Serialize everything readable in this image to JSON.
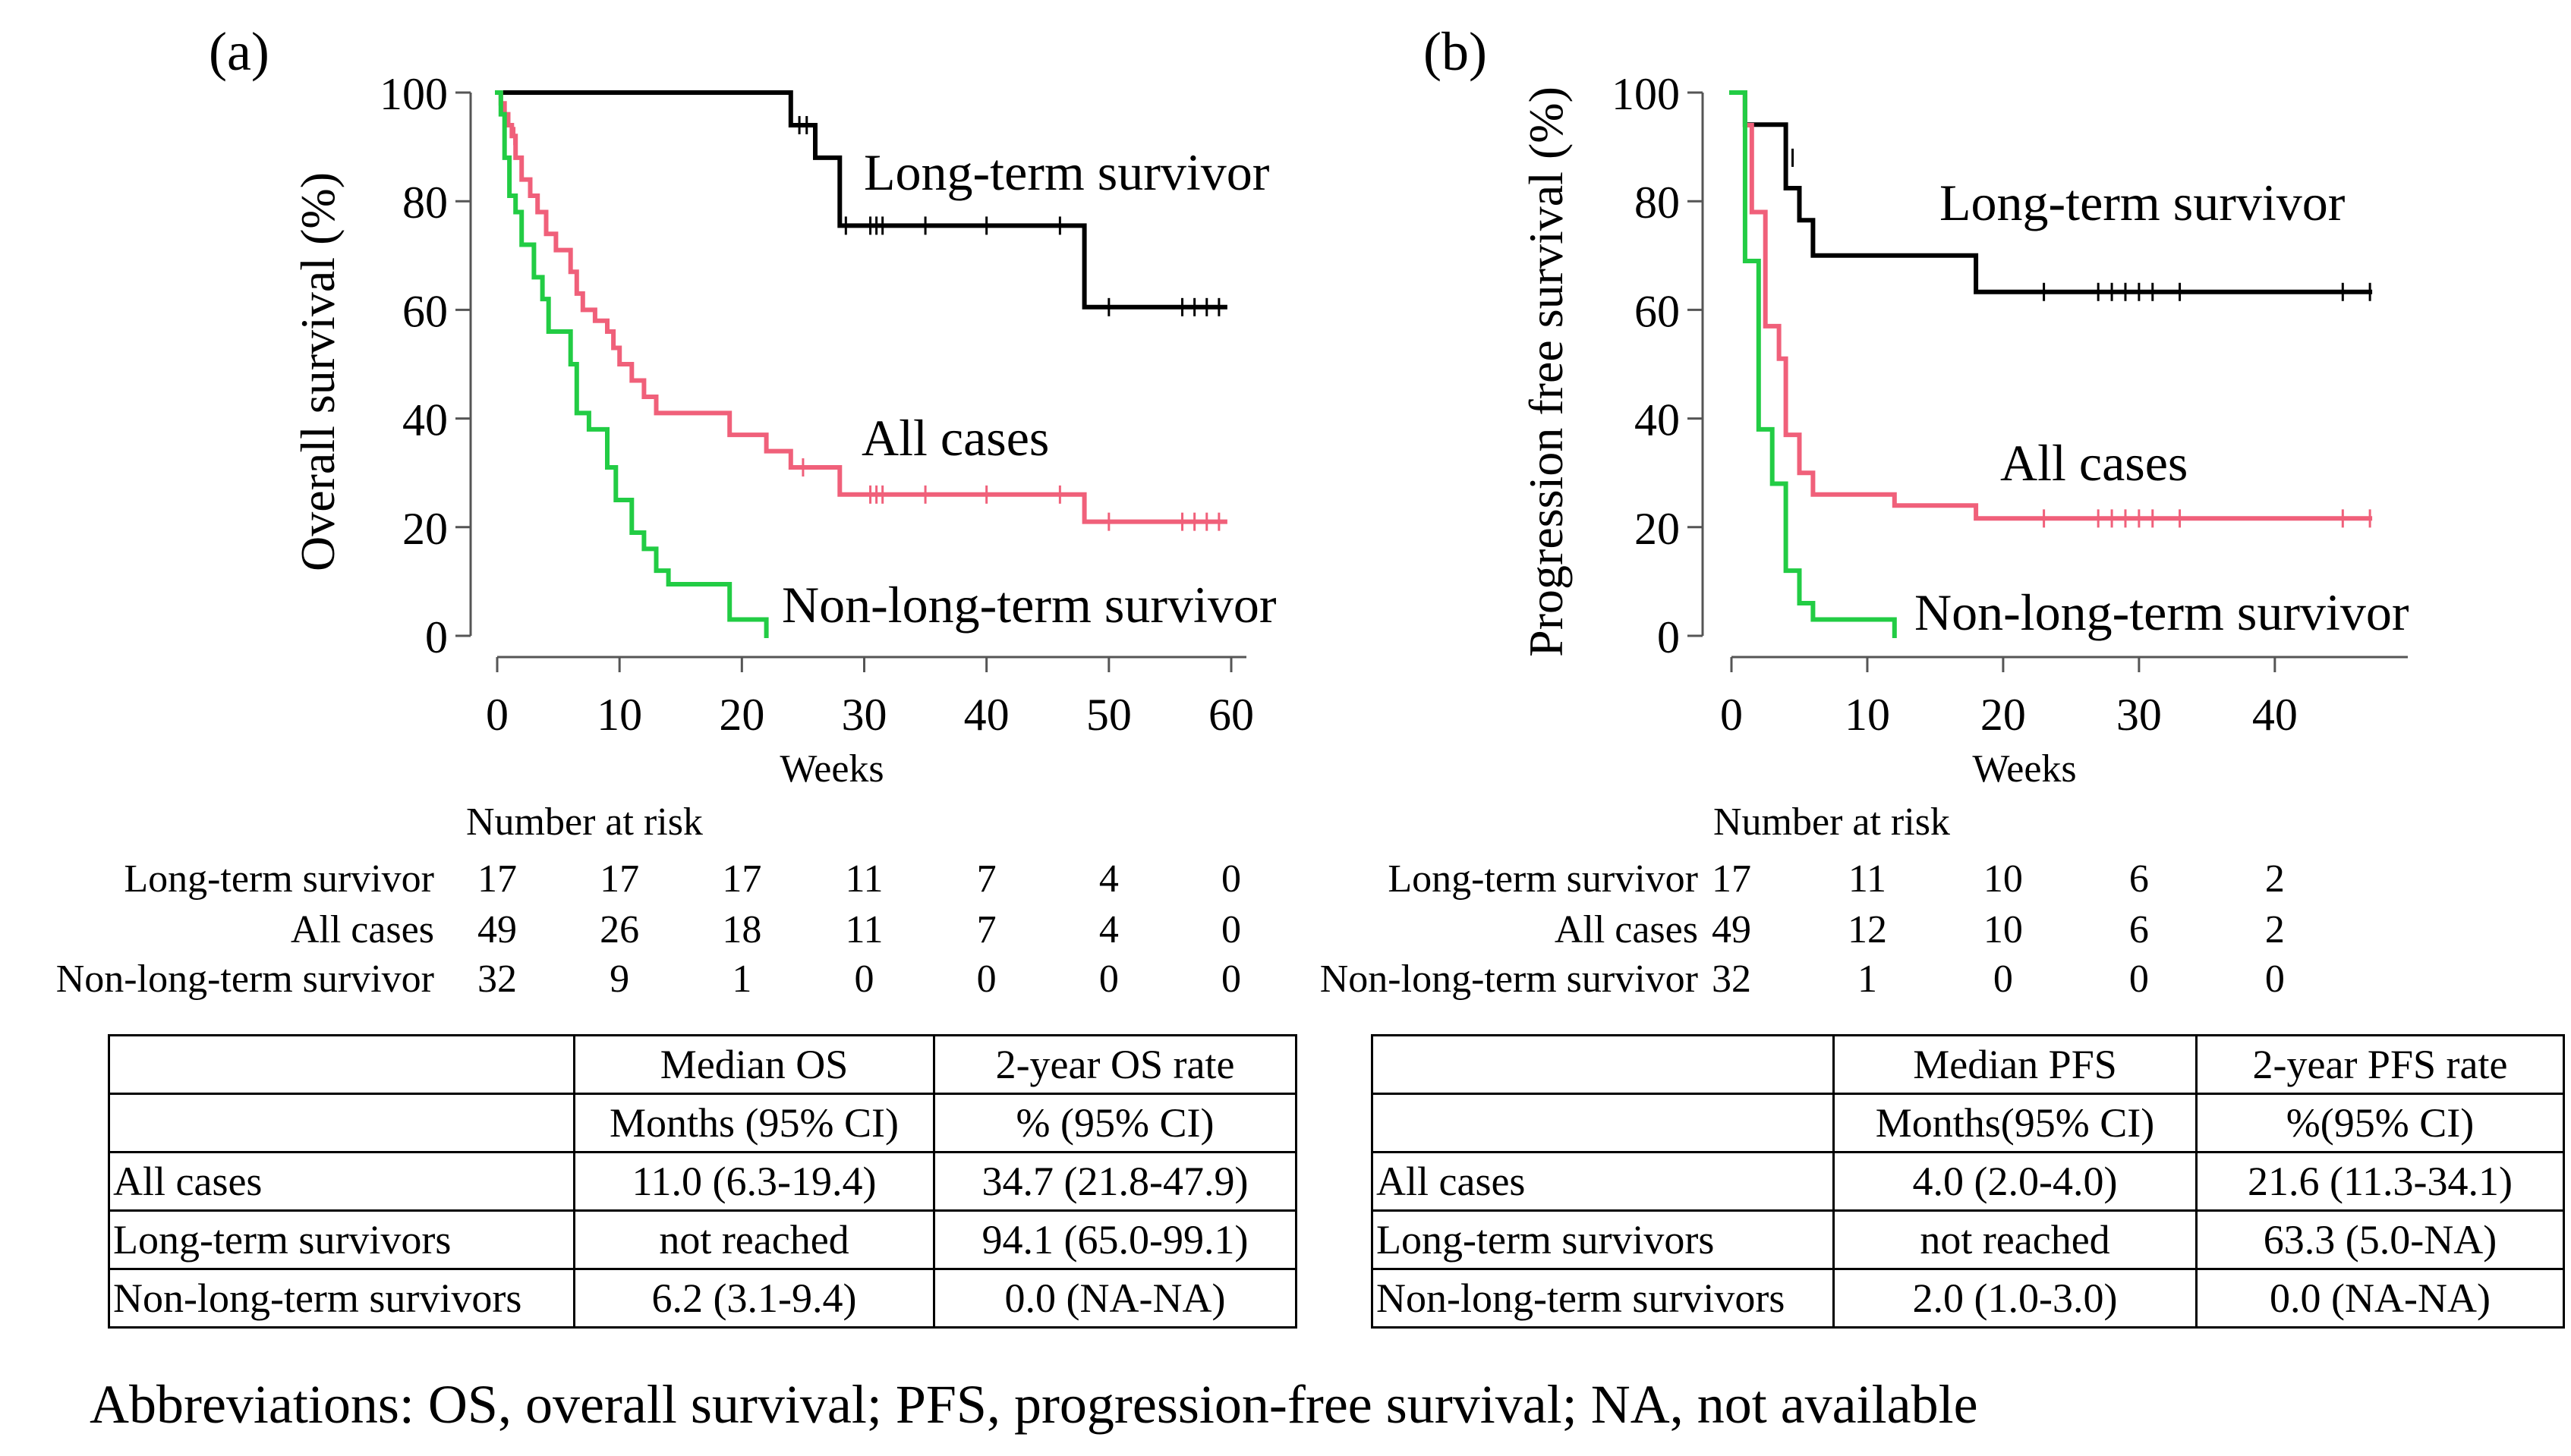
{
  "chart_data": [
    {
      "type": "line",
      "panel_label": "(a)",
      "ylabel": "Overall survival (%)",
      "xlabel": "Weeks",
      "xlim": [
        0,
        60
      ],
      "ylim": [
        0,
        100
      ],
      "xticks": [
        0,
        10,
        20,
        30,
        40,
        50,
        60
      ],
      "yticks": [
        0,
        20,
        40,
        60,
        80,
        100
      ],
      "series": [
        {
          "name": "Long-term survivor",
          "color": "#000000",
          "steps": [
            [
              0,
              100
            ],
            [
              24,
              100
            ],
            [
              24,
              94
            ],
            [
              26,
              94
            ],
            [
              26,
              88
            ],
            [
              28,
              88
            ],
            [
              28,
              75.5
            ],
            [
              48,
              75.5
            ],
            [
              48,
              60.5
            ],
            [
              59.5,
              60.5
            ]
          ],
          "censors": [
            [
              24.7,
              94
            ],
            [
              25.3,
              94
            ],
            [
              28.5,
              75.5
            ],
            [
              30.5,
              75.5
            ],
            [
              31,
              75.5
            ],
            [
              31.5,
              75.5
            ],
            [
              35,
              75.5
            ],
            [
              40,
              75.5
            ],
            [
              46,
              75.5
            ],
            [
              50,
              60.5
            ],
            [
              56,
              60.5
            ],
            [
              57,
              60.5
            ],
            [
              58,
              60.5
            ],
            [
              59,
              60.5
            ]
          ]
        },
        {
          "name": "All cases",
          "color": "#f0607a",
          "steps": [
            [
              0,
              100
            ],
            [
              0.3,
              100
            ],
            [
              0.3,
              98
            ],
            [
              0.6,
              98
            ],
            [
              0.6,
              96
            ],
            [
              0.9,
              96
            ],
            [
              0.9,
              94
            ],
            [
              1.2,
              94
            ],
            [
              1.2,
              92
            ],
            [
              1.5,
              92
            ],
            [
              1.5,
              88
            ],
            [
              2,
              88
            ],
            [
              2,
              84
            ],
            [
              2.7,
              84
            ],
            [
              2.7,
              81
            ],
            [
              3.3,
              81
            ],
            [
              3.3,
              78
            ],
            [
              4,
              78
            ],
            [
              4,
              74
            ],
            [
              4.8,
              74
            ],
            [
              4.8,
              71
            ],
            [
              6,
              71
            ],
            [
              6,
              67
            ],
            [
              6.5,
              67
            ],
            [
              6.5,
              63
            ],
            [
              7,
              63
            ],
            [
              7,
              60
            ],
            [
              8,
              60
            ],
            [
              8,
              58
            ],
            [
              9,
              58
            ],
            [
              9,
              56
            ],
            [
              9.5,
              56
            ],
            [
              9.5,
              53
            ],
            [
              10,
              53
            ],
            [
              10,
              50
            ],
            [
              11,
              50
            ],
            [
              11,
              47
            ],
            [
              12,
              47
            ],
            [
              12,
              44
            ],
            [
              13,
              44
            ],
            [
              13,
              41
            ],
            [
              19,
              41
            ],
            [
              19,
              37
            ],
            [
              22,
              37
            ],
            [
              22,
              34
            ],
            [
              24,
              34
            ],
            [
              24,
              31
            ],
            [
              28,
              31
            ],
            [
              28,
              26
            ],
            [
              48,
              26
            ],
            [
              48,
              21
            ],
            [
              59.5,
              21
            ]
          ],
          "censors": [
            [
              1.4,
              92
            ],
            [
              25,
              31
            ],
            [
              30.5,
              26
            ],
            [
              31,
              26
            ],
            [
              31.5,
              26
            ],
            [
              35,
              26
            ],
            [
              40,
              26
            ],
            [
              46,
              26
            ],
            [
              50,
              21
            ],
            [
              56,
              21
            ],
            [
              57,
              21
            ],
            [
              58,
              21
            ],
            [
              59,
              21
            ]
          ]
        },
        {
          "name": "Non-long-term survivor",
          "color": "#22cc44",
          "steps": [
            [
              0,
              100
            ],
            [
              0.3,
              100
            ],
            [
              0.3,
              96
            ],
            [
              0.6,
              96
            ],
            [
              0.6,
              88
            ],
            [
              1,
              88
            ],
            [
              1,
              81
            ],
            [
              1.5,
              81
            ],
            [
              1.5,
              78
            ],
            [
              2,
              78
            ],
            [
              2,
              72
            ],
            [
              3,
              72
            ],
            [
              3,
              66
            ],
            [
              3.7,
              66
            ],
            [
              3.7,
              62
            ],
            [
              4.2,
              62
            ],
            [
              4.2,
              56
            ],
            [
              6,
              56
            ],
            [
              6,
              50
            ],
            [
              6.5,
              50
            ],
            [
              6.5,
              41
            ],
            [
              7.5,
              41
            ],
            [
              7.5,
              38
            ],
            [
              9,
              38
            ],
            [
              9,
              31
            ],
            [
              9.7,
              31
            ],
            [
              9.7,
              25
            ],
            [
              11,
              25
            ],
            [
              11,
              19
            ],
            [
              12,
              19
            ],
            [
              12,
              16
            ],
            [
              13,
              16
            ],
            [
              13,
              12
            ],
            [
              14,
              12
            ],
            [
              14,
              9.5
            ],
            [
              19,
              9.5
            ],
            [
              19,
              3
            ],
            [
              22,
              3
            ],
            [
              22,
              0
            ]
          ],
          "censors": []
        }
      ],
      "annotations": [
        "Long-term survivor",
        "All cases",
        "Non-long-term survivor"
      ],
      "risk_table": {
        "title": "Number at risk",
        "times": [
          0,
          10,
          20,
          30,
          40,
          50,
          60
        ],
        "rows": [
          {
            "label": "Long-term survivor",
            "values": [
              "17",
              "17",
              "17",
              "11",
              "7",
              "4",
              "0"
            ]
          },
          {
            "label": "All  cases",
            "values": [
              "49",
              "26",
              "18",
              "11",
              "7",
              "4",
              "0"
            ]
          },
          {
            "label": "Non-long-term survivor",
            "values": [
              "32",
              "9",
              "1",
              "0",
              "0",
              "0",
              "0"
            ]
          }
        ]
      }
    },
    {
      "type": "line",
      "panel_label": "(b)",
      "ylabel": "Progression free survival (%)",
      "xlabel": "Weeks",
      "xlim": [
        0,
        48
      ],
      "ylim": [
        0,
        100
      ],
      "xticks": [
        0,
        10,
        20,
        30,
        40
      ],
      "yticks": [
        0,
        20,
        40,
        60,
        80,
        100
      ],
      "series": [
        {
          "name": "Long-term survivor",
          "color": "#000000",
          "steps": [
            [
              0,
              100
            ],
            [
              1,
              100
            ],
            [
              1,
              94.1
            ],
            [
              4,
              94.1
            ],
            [
              4,
              82.4
            ],
            [
              5,
              82.4
            ],
            [
              5,
              76.5
            ],
            [
              6,
              76.5
            ],
            [
              6,
              70
            ],
            [
              18,
              70
            ],
            [
              18,
              63.3
            ],
            [
              47,
              63.3
            ]
          ],
          "censors": [
            [
              4.5,
              88
            ],
            [
              23,
              63.3
            ],
            [
              27,
              63.3
            ],
            [
              28,
              63.3
            ],
            [
              29,
              63.3
            ],
            [
              30,
              63.3
            ],
            [
              31,
              63.3
            ],
            [
              33,
              63.3
            ],
            [
              45,
              63.3
            ],
            [
              47,
              63.3
            ]
          ]
        },
        {
          "name": "All cases",
          "color": "#f0607a",
          "steps": [
            [
              0,
              100
            ],
            [
              1,
              100
            ],
            [
              1,
              94
            ],
            [
              1.5,
              94
            ],
            [
              1.5,
              78
            ],
            [
              2.5,
              78
            ],
            [
              2.5,
              57
            ],
            [
              3.5,
              57
            ],
            [
              3.5,
              51
            ],
            [
              4,
              51
            ],
            [
              4,
              37
            ],
            [
              5,
              37
            ],
            [
              5,
              30
            ],
            [
              6,
              30
            ],
            [
              6,
              26
            ],
            [
              12,
              26
            ],
            [
              12,
              24
            ],
            [
              18,
              24
            ],
            [
              18,
              21.6
            ],
            [
              47,
              21.6
            ]
          ],
          "censors": [
            [
              23,
              21.6
            ],
            [
              27,
              21.6
            ],
            [
              28,
              21.6
            ],
            [
              29,
              21.6
            ],
            [
              30,
              21.6
            ],
            [
              31,
              21.6
            ],
            [
              33,
              21.6
            ],
            [
              45,
              21.6
            ],
            [
              47,
              21.6
            ]
          ]
        },
        {
          "name": "Non-long-term survivor",
          "color": "#22cc44",
          "steps": [
            [
              0,
              100
            ],
            [
              1,
              100
            ],
            [
              1,
              69
            ],
            [
              2,
              69
            ],
            [
              2,
              38
            ],
            [
              3,
              38
            ],
            [
              3,
              28
            ],
            [
              4,
              28
            ],
            [
              4,
              12
            ],
            [
              5,
              12
            ],
            [
              5,
              6
            ],
            [
              6,
              6
            ],
            [
              6,
              3
            ],
            [
              12,
              3
            ],
            [
              12,
              0
            ]
          ],
          "censors": []
        }
      ],
      "annotations": [
        "Long-term survivor",
        "All cases",
        "Non-long-term survivor"
      ],
      "risk_table": {
        "title": "Number at risk",
        "times": [
          0,
          10,
          20,
          30,
          40
        ],
        "rows": [
          {
            "label": "Long-term survivor",
            "values": [
              "17",
              "11",
              "10",
              "6",
              "2"
            ]
          },
          {
            "label": "All cases",
            "values": [
              "49",
              "12",
              "10",
              "6",
              "2"
            ]
          },
          {
            "label": "Non-long-term survivor",
            "values": [
              "32",
              "1",
              "0",
              "0",
              "0"
            ]
          }
        ]
      }
    }
  ],
  "tables": [
    {
      "columns": [
        "",
        "Median OS",
        "2-year OS rate"
      ],
      "units": [
        "",
        "Months (95% CI)",
        "% (95% CI)"
      ],
      "rows": [
        {
          "label": "All cases",
          "median": "11.0 (6.3-19.4)",
          "rate": "34.7 (21.8-47.9)"
        },
        {
          "label": "Long-term survivors",
          "median": "not reached",
          "rate": "94.1 (65.0-99.1)"
        },
        {
          "label": "Non-long-term survivors",
          "median": "6.2 (3.1-9.4)",
          "rate": "0.0 (NA-NA)"
        }
      ]
    },
    {
      "columns": [
        "",
        "Median PFS",
        "2-year PFS rate"
      ],
      "units": [
        "",
        "Months(95% CI)",
        "%(95% CI)"
      ],
      "rows": [
        {
          "label": "All cases",
          "median": "4.0 (2.0-4.0)",
          "rate": "21.6 (11.3-34.1)"
        },
        {
          "label": "Long-term survivors",
          "median": "not reached",
          "rate": "63.3 (5.0-NA)"
        },
        {
          "label": "Non-long-term survivors",
          "median": "2.0 (1.0-3.0)",
          "rate": "0.0 (NA-NA)"
        }
      ]
    }
  ],
  "footnote": "Abbreviations: OS, overall survival; PFS, progression-free survival; NA, not available"
}
